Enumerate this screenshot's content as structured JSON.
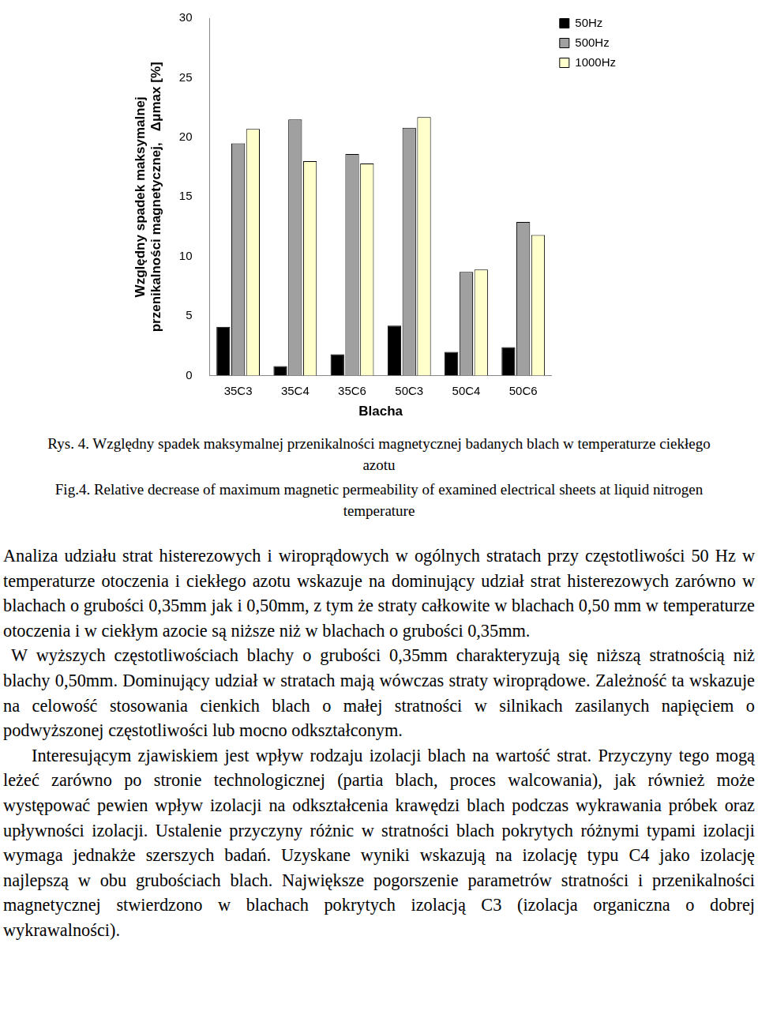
{
  "chart_data": {
    "type": "bar",
    "categories": [
      "35C3",
      "35C4",
      "35C6",
      "50C3",
      "50C4",
      "50C6"
    ],
    "series": [
      {
        "name": "50Hz",
        "color": "#000000",
        "values": [
          4.1,
          0.8,
          1.8,
          4.2,
          2.0,
          2.4
        ]
      },
      {
        "name": "500Hz",
        "color": "#a0a0a0",
        "values": [
          19.5,
          21.5,
          18.6,
          20.8,
          8.7,
          12.9
        ]
      },
      {
        "name": "1000Hz",
        "color": "#ffffcc",
        "values": [
          20.7,
          18.0,
          17.8,
          21.7,
          8.9,
          11.8
        ]
      }
    ],
    "xlabel": "Blacha",
    "ylabel": [
      "Względny spadek maksymalnej",
      "przenikalności magnetycznej,   Δμmax [%]"
    ],
    "ylim": [
      0,
      30
    ],
    "yticks": [
      0,
      5,
      10,
      15,
      20,
      25,
      30
    ],
    "grid": false,
    "legend": "upper right"
  },
  "captions": [
    "Rys. 4. Względny spadek maksymalnej przenikalności magnetycznej badanych blach w temperaturze ciekłego azotu",
    "Fig.4. Relative decrease of maximum magnetic permeability of examined electrical sheets at liquid nitrogen temperature"
  ],
  "paragraphs": [
    "Analiza udziału strat histerezowych i wiroprądowych w ogólnych stratach przy częstotliwości 50 Hz w temperaturze otoczenia i ciekłego azotu wskazuje na dominujący udział strat histerezowych zarówno w blachach o grubości 0,35mm jak i 0,50mm, z tym że straty całkowite w blachach 0,50 mm w temperaturze otoczenia i w ciekłym azocie są niższe niż w blachach o grubości 0,35mm.",
    "W wyższych częstotliwościach blachy o grubości 0,35mm charakteryzują się niższą stratnością niż blachy 0,50mm. Dominujący udział w stratach mają wówczas straty wiroprądowe. Zależność ta wskazuje na celowość stosowania cienkich blach o małej stratności w silnikach zasilanych napięciem o podwyższonej częstotliwości lub mocno odkształconym.",
    "Interesującym zjawiskiem jest wpływ rodzaju izolacji blach na wartość strat. Przyczyny tego mogą leżeć zarówno po stronie technologicznej (partia blach, proces walcowania), jak również może występować pewien wpływ izolacji na odkształcenia krawędzi blach podczas wykrawania próbek oraz upływności izolacji. Ustalenie przyczyny różnic w stratności blach pokrytych różnymi typami izolacji wymaga jednakże szerszych badań. Uzyskane wyniki wskazują na izolację typu C4 jako izolację najlepszą w obu grubościach blach. Największe pogorszenie parametrów stratności i przenikalności magnetycznej stwierdzono w blachach pokrytych izolacją C3 (izolacja organiczna o dobrej wykrawalności)."
  ]
}
